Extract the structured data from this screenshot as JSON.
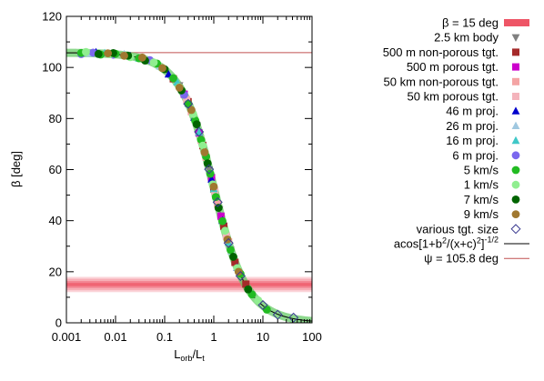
{
  "chart_data": {
    "type": "scatter",
    "title": "",
    "xlabel": {
      "main": "L",
      "sub1": "orb",
      "sep": "/L",
      "sub2": "t"
    },
    "ylabel": "β [deg]",
    "x_scale": "log",
    "xlim": [
      0.001,
      100
    ],
    "ylim": [
      0,
      120
    ],
    "x_ticks": [
      {
        "value": 0.001,
        "label": "0.001"
      },
      {
        "value": 0.01,
        "label": "0.01"
      },
      {
        "value": 0.1,
        "label": "0.1"
      },
      {
        "value": 1,
        "label": "1"
      },
      {
        "value": 10,
        "label": "10"
      },
      {
        "value": 100,
        "label": "100"
      }
    ],
    "y_ticks": [
      {
        "value": 0,
        "label": "0"
      },
      {
        "value": 20,
        "label": "20"
      },
      {
        "value": 40,
        "label": "40"
      },
      {
        "value": 60,
        "label": "60"
      },
      {
        "value": 80,
        "label": "80"
      },
      {
        "value": 100,
        "label": "100"
      },
      {
        "value": 120,
        "label": "120"
      }
    ],
    "grid": false,
    "legend_position": "right",
    "band": {
      "name": "β = 15 deg",
      "center": 15,
      "half_width": 3,
      "color": "#ee5566"
    },
    "fit": {
      "name": "acos[1+b²/(x+c)²]^(-1/2)",
      "legend_parts": {
        "a": "acos[1+b",
        "b": "2",
        "c": "/(x+c)",
        "d": "2",
        "e": "]",
        "f": "-1/2"
      },
      "b": 1.0,
      "c": 0.0,
      "psi_deg": 105.8,
      "color": "#000000"
    },
    "hline": {
      "name": "ψ = 105.8 deg",
      "value": 105.8,
      "color": "#c05050"
    },
    "series": [
      {
        "name": "2.5 km body",
        "marker": "tri-down",
        "color": "#808080",
        "x": [
          0.2,
          0.45,
          0.8,
          1.3,
          2.2
        ]
      },
      {
        "name": "500 m non-porous tgt.",
        "marker": "square",
        "color": "#a52a2a",
        "x": [
          0.15,
          0.3,
          0.6,
          1.0,
          1.6,
          2.7,
          4.5
        ]
      },
      {
        "name": "500 m porous tgt.",
        "marker": "square",
        "color": "#cc00cc",
        "x": [
          0.25,
          0.5,
          0.9,
          1.4
        ]
      },
      {
        "name": "50 km non-porous tgt.",
        "marker": "square",
        "color": "#f4a4a4",
        "x": [
          0.35,
          0.7,
          1.2,
          2.0
        ]
      },
      {
        "name": "50 km porous tgt.",
        "marker": "square",
        "color": "#f4b4bc",
        "x": [
          0.28,
          0.55,
          1.05,
          1.8
        ]
      },
      {
        "name": "46 m proj.",
        "marker": "triangle",
        "color": "#0000cc",
        "x": [
          0.004,
          0.02,
          0.12,
          0.4,
          0.9,
          1.5,
          3.0
        ]
      },
      {
        "name": "26 m proj.",
        "marker": "triangle",
        "color": "#a0c8e0",
        "x": [
          0.003,
          0.015,
          0.08,
          0.3,
          0.65,
          1.1,
          2.3
        ]
      },
      {
        "name": "16 m proj.",
        "marker": "triangle",
        "color": "#40c8c8",
        "x": [
          0.006,
          0.03,
          0.18,
          0.5,
          1.0,
          2.0
        ]
      },
      {
        "name": "6 m proj.",
        "marker": "circle",
        "color": "#7b68ee",
        "x": [
          0.002,
          0.0035,
          0.009,
          0.05,
          0.25
        ]
      },
      {
        "name": "5 km/s",
        "marker": "circle",
        "color": "#22bb22",
        "x": [
          0.002,
          0.005,
          0.01,
          0.03,
          0.07,
          0.15,
          0.3,
          0.42,
          0.55,
          0.7,
          0.85,
          1.1,
          1.5,
          2.2,
          3.5,
          6,
          12
        ]
      },
      {
        "name": "1 km/s",
        "marker": "circle",
        "color": "#90ee90",
        "x": [
          0.0025,
          0.008,
          0.02,
          0.06,
          0.2,
          0.38,
          0.6,
          0.95,
          1.7,
          3.0,
          8
        ]
      },
      {
        "name": "7 km/s",
        "marker": "circle",
        "color": "#006400",
        "x": [
          0.0045,
          0.009,
          0.018,
          0.04,
          0.1,
          0.22,
          0.45,
          0.75,
          1.25,
          2.5,
          5
        ]
      },
      {
        "name": "9 km/s",
        "marker": "circle",
        "color": "#a07830",
        "x": [
          0.007,
          0.015,
          0.035,
          0.09,
          0.2,
          0.35,
          0.65,
          1.0,
          1.9,
          3.2
        ]
      },
      {
        "name": "various tgt. size",
        "marker": "diamond-open",
        "color": "#3a3a90",
        "x": [
          0.3,
          0.5,
          0.8,
          1.2,
          2.0,
          3.5,
          10,
          20,
          42
        ]
      }
    ]
  }
}
